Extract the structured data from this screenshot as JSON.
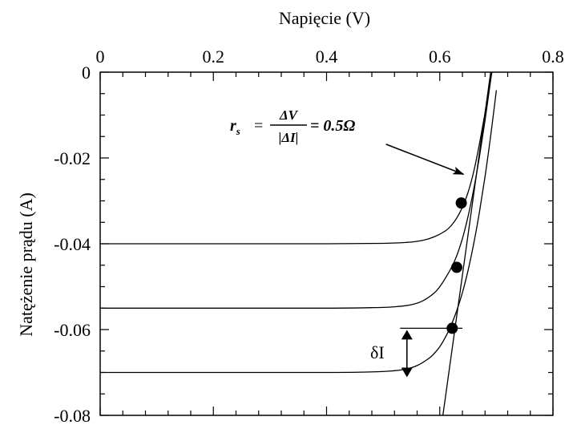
{
  "chart_data": {
    "type": "line",
    "xlabel": "Napięcie (V)",
    "ylabel": "Natężenie prądu (A)",
    "x_axis_position": "top",
    "xlim": [
      0,
      0.8
    ],
    "ylim": [
      -0.08,
      0
    ],
    "x_ticks": [
      {
        "value": 0,
        "label": "0"
      },
      {
        "value": 0.2,
        "label": "0.2"
      },
      {
        "value": 0.4,
        "label": "0.4"
      },
      {
        "value": 0.6,
        "label": "0.6"
      },
      {
        "value": 0.8,
        "label": "0.8"
      }
    ],
    "y_ticks": [
      {
        "value": 0,
        "label": "0"
      },
      {
        "value": -0.02,
        "label": "-0.02"
      },
      {
        "value": -0.04,
        "label": "-0.04"
      },
      {
        "value": -0.06,
        "label": "-0.06"
      },
      {
        "value": -0.08,
        "label": "-0.08"
      }
    ],
    "series": [
      {
        "x": [
          0,
          0.2,
          0.4,
          0.5,
          0.54,
          0.57,
          0.59,
          0.61,
          0.62,
          0.63,
          0.64,
          0.65,
          0.66,
          0.67,
          0.68,
          0.69,
          0.695,
          0.7
        ],
        "y": [
          -0.04,
          -0.04,
          -0.04,
          -0.0399,
          -0.0397,
          -0.0392,
          -0.0384,
          -0.037,
          -0.0358,
          -0.034,
          -0.0315,
          -0.028,
          -0.0232,
          -0.0168,
          -0.0095,
          -0.0015,
          0.002,
          0.006
        ]
      },
      {
        "x": [
          0,
          0.2,
          0.4,
          0.48,
          0.52,
          0.55,
          0.57,
          0.59,
          0.6,
          0.61,
          0.62,
          0.63,
          0.64,
          0.65,
          0.66,
          0.67,
          0.68,
          0.69,
          0.7
        ],
        "y": [
          -0.055,
          -0.055,
          -0.055,
          -0.0549,
          -0.0547,
          -0.0542,
          -0.0533,
          -0.0515,
          -0.05,
          -0.048,
          -0.0457,
          -0.0428,
          -0.0388,
          -0.0336,
          -0.0273,
          -0.0198,
          -0.0112,
          -0.0018,
          0.007
        ]
      },
      {
        "x": [
          0,
          0.2,
          0.4,
          0.47,
          0.51,
          0.54,
          0.56,
          0.58,
          0.59,
          0.6,
          0.61,
          0.62,
          0.63,
          0.64,
          0.65,
          0.66,
          0.67,
          0.68,
          0.69,
          0.7
        ],
        "y": [
          -0.07,
          -0.07,
          -0.07,
          -0.0699,
          -0.0697,
          -0.0692,
          -0.0684,
          -0.0668,
          -0.0656,
          -0.064,
          -0.0618,
          -0.059,
          -0.0556,
          -0.0514,
          -0.0462,
          -0.04,
          -0.0327,
          -0.0243,
          -0.0148,
          -0.0042
        ]
      }
    ],
    "series_resistance_line": {
      "x": [
        0.605,
        0.69
      ],
      "y": [
        -0.0805,
        0
      ]
    },
    "operating_points": [
      {
        "x": 0.638,
        "y": -0.0305
      },
      {
        "x": 0.63,
        "y": -0.0455
      },
      {
        "x": 0.622,
        "y": -0.0597
      }
    ],
    "delta_i_bracket": {
      "x_start": 0.53,
      "x_end": 0.64,
      "y_top": -0.0597,
      "y_bottom": -0.0715
    },
    "annotations": {
      "rs_prefix": "r",
      "rs_sub": "s",
      "rs_equals": "=",
      "rs_numerator": "ΔV",
      "rs_denominator": "|ΔI|",
      "rs_value": "= 0.5Ω",
      "delta_i_label": "δI",
      "arrow_from": {
        "x": 0.505,
        "y": -0.0168
      },
      "arrow_to": {
        "x": 0.642,
        "y": -0.0238
      }
    }
  }
}
